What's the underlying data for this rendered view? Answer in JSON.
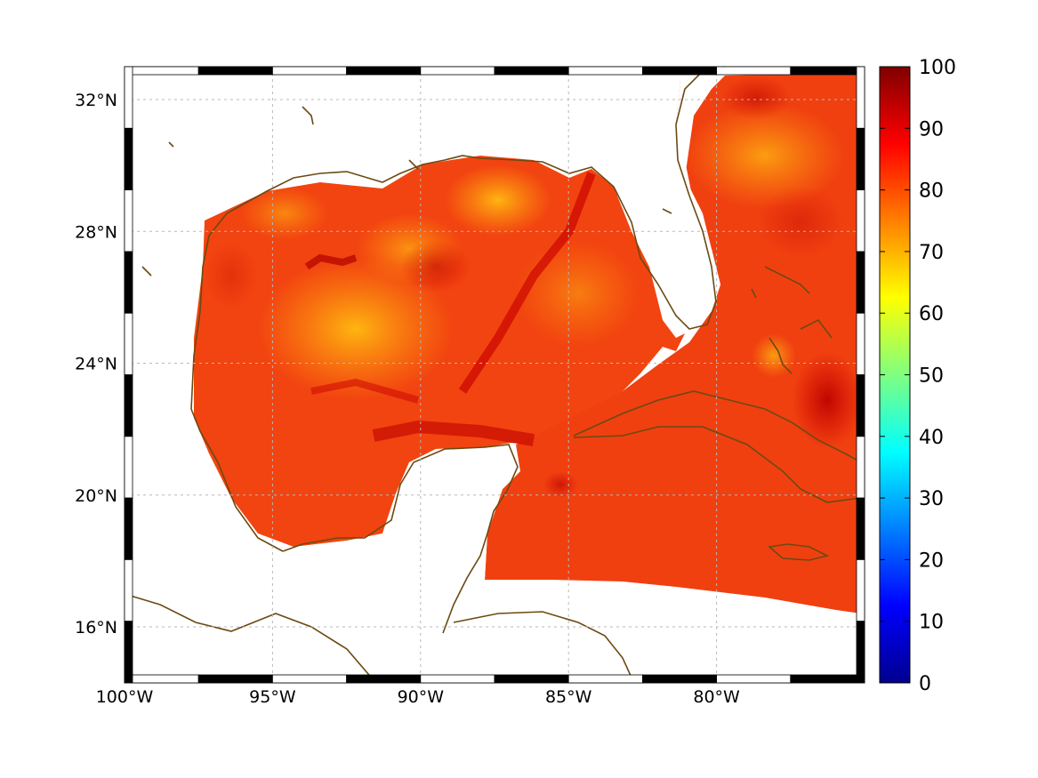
{
  "map": {
    "lat_labels": [
      "32°N",
      "28°N",
      "24°N",
      "20°N",
      "16°N"
    ],
    "lat_values": [
      32,
      28,
      24,
      20,
      16
    ],
    "lon_labels": [
      "100°W",
      "95°W",
      "90°W",
      "85°W",
      "80°W"
    ],
    "lon_values": [
      -100,
      -95,
      -90,
      -85,
      -80
    ],
    "lon_range": [
      -100,
      -75
    ],
    "lat_range": [
      14.3,
      33
    ],
    "coastline_color": "#6b4a12",
    "gridlines": true
  },
  "colorbar": {
    "ticks": [
      "100",
      "90",
      "80",
      "70",
      "60",
      "50",
      "40",
      "30",
      "20",
      "10",
      "0"
    ],
    "range": [
      0,
      100
    ],
    "colormap": "jet"
  }
}
